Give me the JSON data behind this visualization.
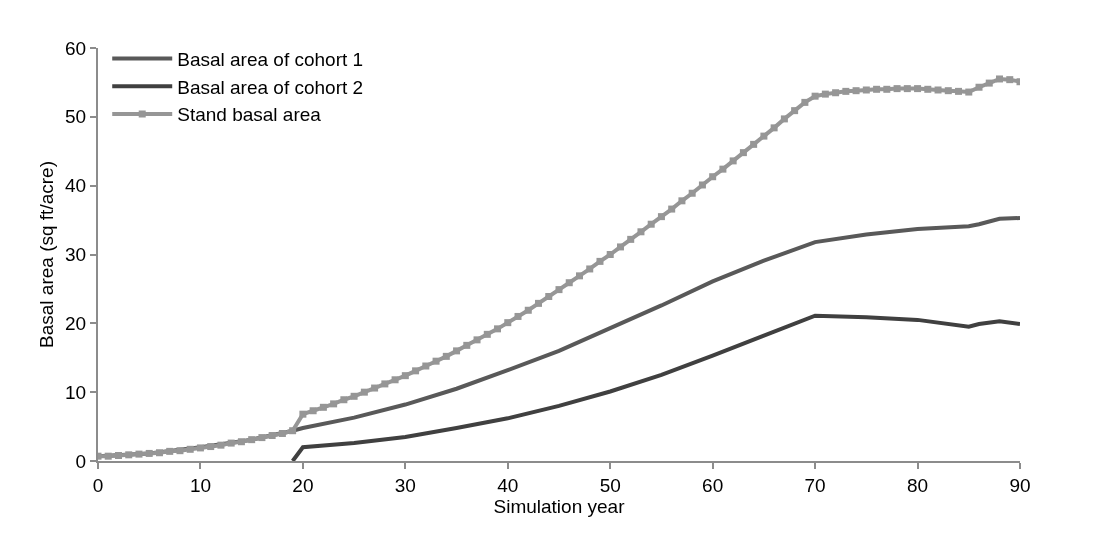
{
  "chart_data": {
    "type": "line",
    "xlabel": "Simulation year",
    "ylabel": "Basal area (sq ft/acre)",
    "xlim": [
      0,
      90
    ],
    "ylim": [
      0,
      60
    ],
    "xticks": [
      0,
      10,
      20,
      30,
      40,
      50,
      60,
      70,
      80,
      90
    ],
    "yticks": [
      0,
      10,
      20,
      30,
      40,
      50,
      60
    ],
    "legend": "top left",
    "line_style": "solid",
    "series": [
      {
        "name": "Basal area of cohort 1",
        "color": "#595959",
        "marker": "none",
        "x": [
          0,
          5,
          10,
          15,
          19,
          20,
          25,
          30,
          35,
          40,
          45,
          50,
          55,
          60,
          65,
          70,
          75,
          80,
          85,
          86,
          88,
          90
        ],
        "values": [
          0.7,
          1.1,
          2.0,
          3.1,
          4.4,
          4.8,
          6.3,
          8.2,
          10.5,
          13.2,
          16.0,
          19.3,
          22.6,
          26.1,
          29.1,
          31.8,
          32.9,
          33.7,
          34.1,
          34.4,
          35.2,
          35.3
        ]
      },
      {
        "name": "Basal area of cohort 2",
        "color": "#404040",
        "marker": "none",
        "x": [
          19,
          20,
          25,
          30,
          35,
          40,
          45,
          50,
          55,
          60,
          65,
          70,
          75,
          80,
          85,
          86,
          88,
          90
        ],
        "values": [
          0,
          2.0,
          2.6,
          3.5,
          4.8,
          6.2,
          8.0,
          10.1,
          12.5,
          15.3,
          18.2,
          21.1,
          20.9,
          20.5,
          19.5,
          19.9,
          20.3,
          19.9
        ]
      },
      {
        "name": "Stand basal area",
        "color": "#969696",
        "marker": "square",
        "x": [
          0,
          1,
          2,
          3,
          4,
          5,
          6,
          7,
          8,
          9,
          10,
          11,
          12,
          13,
          14,
          15,
          16,
          17,
          18,
          19,
          20,
          21,
          22,
          23,
          24,
          25,
          26,
          27,
          28,
          29,
          30,
          31,
          32,
          33,
          34,
          35,
          36,
          37,
          38,
          39,
          40,
          41,
          42,
          43,
          44,
          45,
          46,
          47,
          48,
          49,
          50,
          51,
          52,
          53,
          54,
          55,
          56,
          57,
          58,
          59,
          60,
          61,
          62,
          63,
          64,
          65,
          66,
          67,
          68,
          69,
          70,
          71,
          72,
          73,
          74,
          75,
          76,
          77,
          78,
          79,
          80,
          81,
          82,
          83,
          84,
          85,
          86,
          87,
          88,
          89,
          90
        ],
        "values": [
          0.7,
          0.7,
          0.8,
          0.9,
          1.0,
          1.1,
          1.2,
          1.4,
          1.5,
          1.7,
          1.9,
          2.1,
          2.3,
          2.6,
          2.8,
          3.1,
          3.4,
          3.7,
          4.0,
          4.4,
          6.8,
          7.3,
          7.8,
          8.3,
          8.9,
          9.4,
          10.0,
          10.6,
          11.2,
          11.8,
          12.4,
          13.1,
          13.8,
          14.5,
          15.2,
          16.0,
          16.8,
          17.6,
          18.4,
          19.2,
          20.1,
          21.0,
          21.9,
          22.9,
          23.9,
          24.9,
          25.9,
          26.9,
          27.9,
          29.0,
          30.0,
          31.1,
          32.2,
          33.3,
          34.4,
          35.5,
          36.6,
          37.8,
          38.9,
          40.1,
          41.3,
          42.4,
          43.6,
          44.8,
          46.0,
          47.2,
          48.4,
          49.7,
          50.9,
          52.1,
          53.0,
          53.3,
          53.5,
          53.7,
          53.8,
          53.9,
          54.0,
          54.0,
          54.1,
          54.1,
          54.1,
          54.0,
          53.9,
          53.8,
          53.7,
          53.6,
          54.3,
          54.9,
          55.5,
          55.4,
          55.1
        ]
      }
    ]
  }
}
